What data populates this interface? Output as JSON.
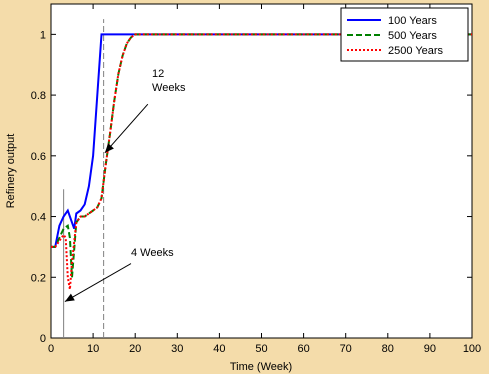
{
  "chart_data": {
    "type": "line",
    "title": "",
    "xlabel": "Time (Week)",
    "ylabel": "Refinery output",
    "xlim": [
      0,
      100
    ],
    "ylim": [
      0,
      1.1
    ],
    "xticks": [
      0,
      10,
      20,
      30,
      40,
      50,
      60,
      70,
      80,
      90,
      100
    ],
    "yticks": [
      0,
      0.2,
      0.4,
      0.6,
      0.8,
      1
    ],
    "ytick_labels": [
      "0",
      "0.2",
      "0.4",
      "0.6",
      "0.8",
      "1"
    ],
    "grid": false,
    "legend_position": "top-right",
    "series": [
      {
        "name": "100 Years",
        "color": "#0000ff",
        "style": "solid",
        "x": [
          0,
          1,
          2,
          3,
          4,
          5,
          5.5,
          6,
          7,
          8,
          9,
          10,
          11,
          12,
          13,
          20,
          40,
          60,
          80,
          100
        ],
        "y": [
          0.3,
          0.3,
          0.37,
          0.4,
          0.42,
          0.38,
          0.36,
          0.41,
          0.42,
          0.44,
          0.5,
          0.6,
          0.8,
          1.0,
          1.0,
          1.0,
          1.0,
          1.0,
          1.0,
          1.0
        ]
      },
      {
        "name": "500 Years",
        "color": "#008000",
        "style": "dashed",
        "x": [
          0,
          1,
          2,
          3,
          4,
          4.5,
          5,
          6,
          7,
          8,
          9,
          10,
          11,
          12,
          13,
          14,
          15,
          16,
          17,
          18,
          19,
          20,
          22,
          25,
          30,
          40,
          60,
          80,
          100
        ],
        "y": [
          0.3,
          0.3,
          0.33,
          0.36,
          0.37,
          0.33,
          0.2,
          0.38,
          0.4,
          0.4,
          0.41,
          0.42,
          0.43,
          0.46,
          0.57,
          0.67,
          0.78,
          0.87,
          0.93,
          0.97,
          0.99,
          1.0,
          1.0,
          1.0,
          1.0,
          1.0,
          1.0,
          1.0,
          1.0
        ]
      },
      {
        "name": "2500 Years",
        "color": "#ff0000",
        "style": "dotted",
        "x": [
          0,
          1,
          2,
          3,
          3.5,
          4,
          4.5,
          5,
          6,
          7,
          8,
          9,
          10,
          11,
          12,
          13,
          14,
          15,
          16,
          17,
          18,
          19,
          20,
          22,
          25,
          30,
          40,
          60,
          80,
          100
        ],
        "y": [
          0.3,
          0.3,
          0.32,
          0.34,
          0.33,
          0.2,
          0.16,
          0.25,
          0.38,
          0.4,
          0.4,
          0.41,
          0.42,
          0.43,
          0.46,
          0.57,
          0.67,
          0.78,
          0.87,
          0.93,
          0.97,
          0.99,
          1.0,
          1.0,
          1.0,
          1.0,
          1.0,
          1.0,
          1.0,
          1.0
        ]
      }
    ],
    "vertical_lines": [
      {
        "x": 3,
        "y_from": 0,
        "y_to": 0.49,
        "color": "#808080",
        "style": "solid"
      },
      {
        "x": 12.5,
        "y_from": 0,
        "y_to": 1.05,
        "color": "#808080",
        "style": "dashed"
      }
    ],
    "annotations": [
      {
        "label_lines": [
          "12",
          "Weeks"
        ],
        "text_x": 24,
        "text_y": 0.86,
        "arrow_from_x": 23,
        "arrow_from_y": 0.77,
        "arrow_to_x": 12.8,
        "arrow_to_y": 0.61
      },
      {
        "label_lines": [
          "4 Weeks"
        ],
        "text_x": 19,
        "text_y": 0.27,
        "arrow_from_x": 19,
        "arrow_from_y": 0.245,
        "arrow_to_x": 3.3,
        "arrow_to_y": 0.12
      }
    ]
  }
}
